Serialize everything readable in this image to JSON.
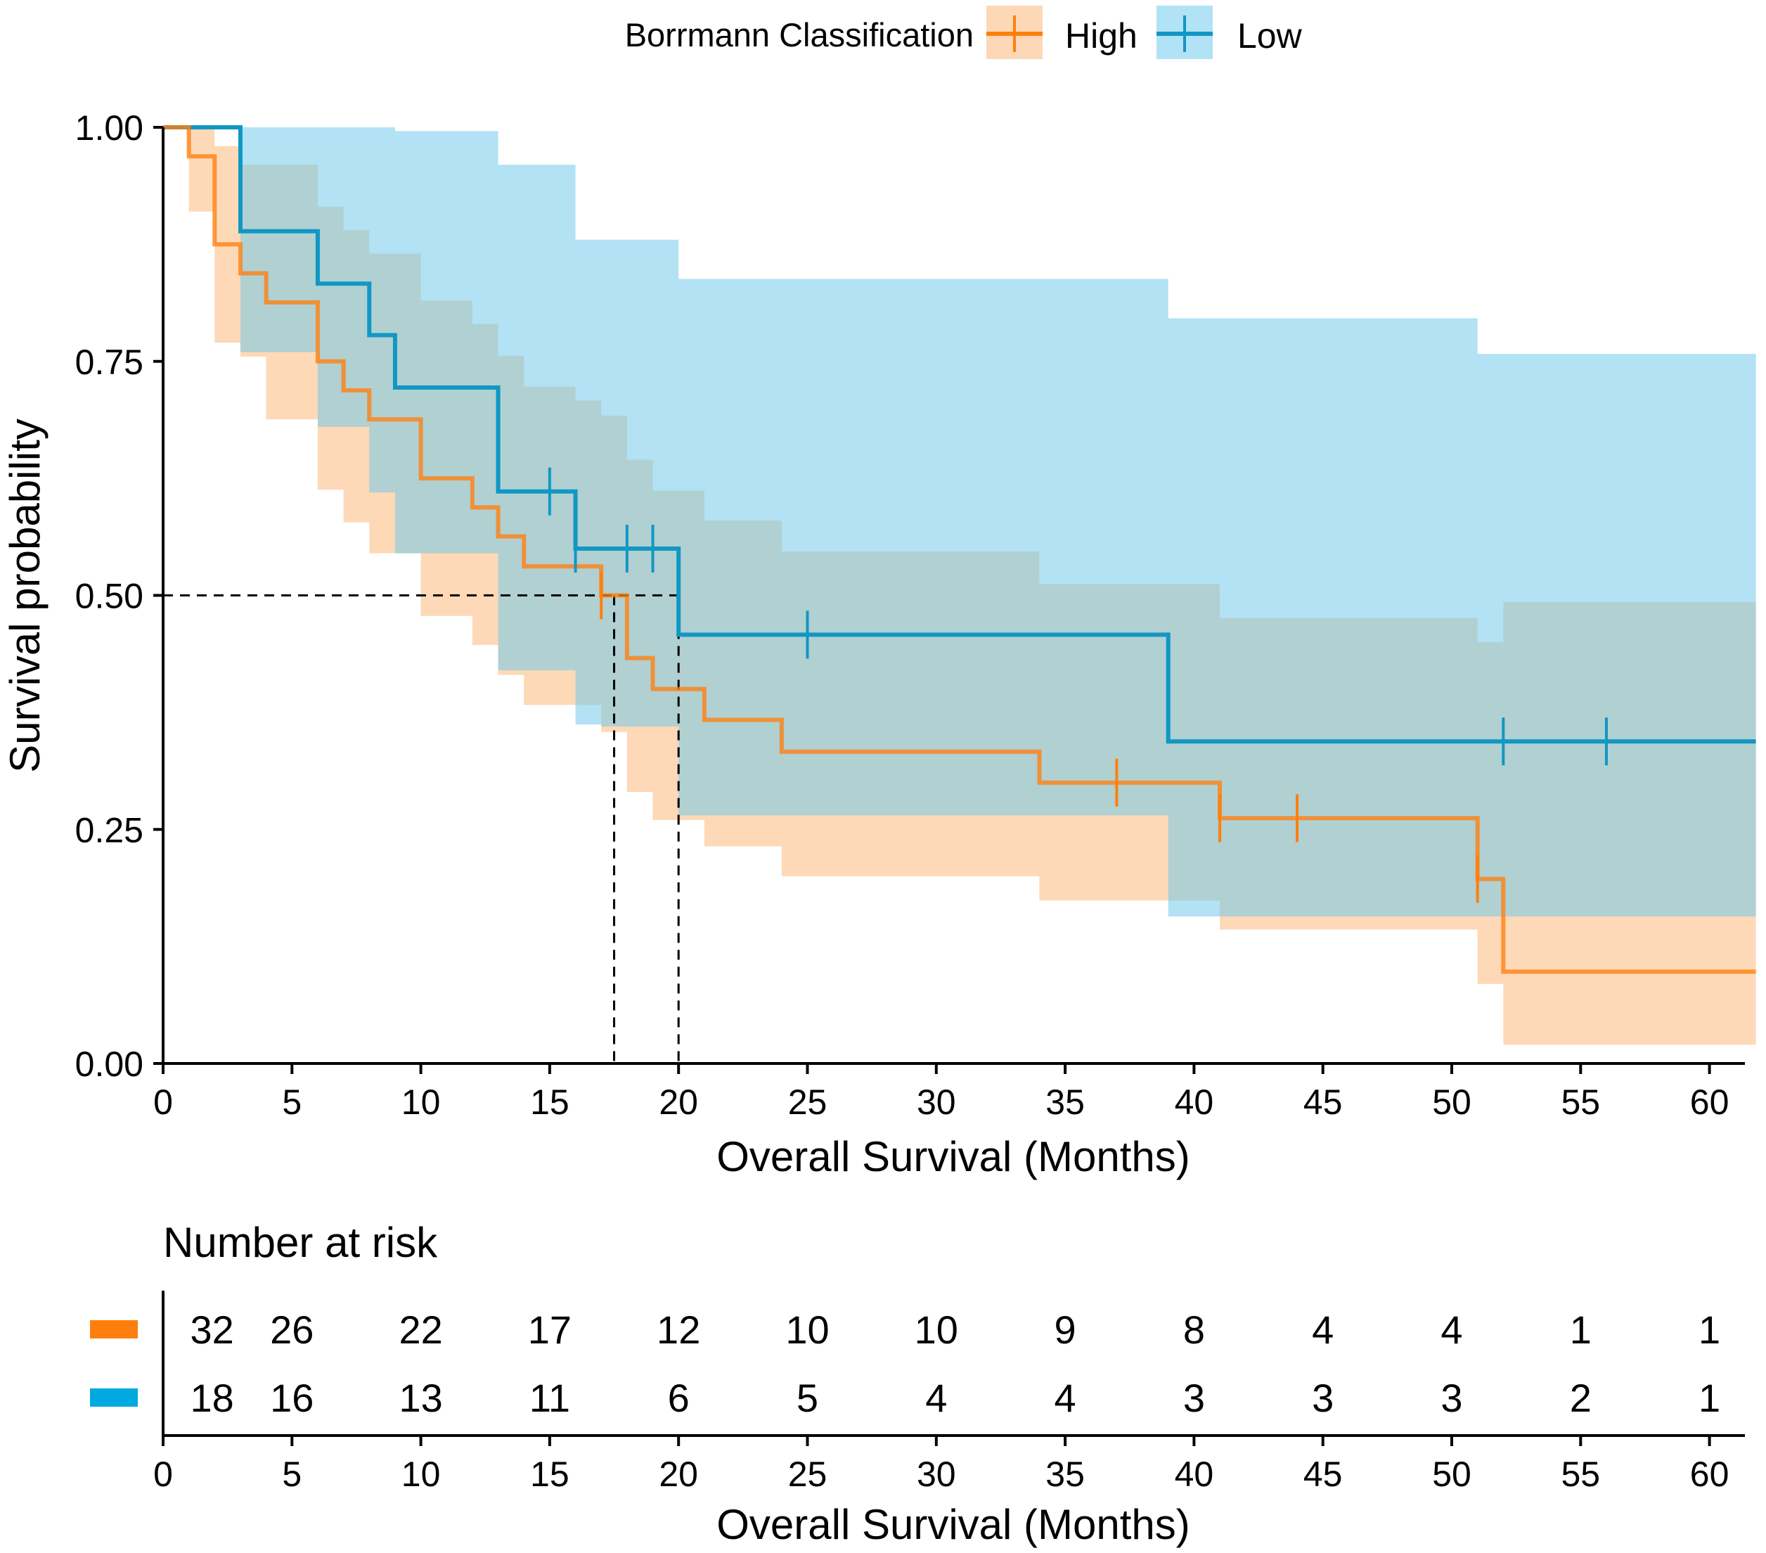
{
  "chart_data": {
    "type": "line",
    "subtype": "kaplan-meier",
    "legend": {
      "title": "Borrmann Classification",
      "position": "top",
      "entries": [
        {
          "name": "High",
          "color": "#ff7f0e"
        },
        {
          "name": "Low",
          "color": "#1197c4"
        }
      ]
    },
    "xlabel": "Overall Survival (Months)",
    "ylabel": "Survival probability",
    "xlim": [
      0,
      61.8
    ],
    "ylim": [
      0,
      1
    ],
    "x_ticks": [
      "0",
      "5",
      "10",
      "15",
      "20",
      "25",
      "30",
      "35",
      "40",
      "45",
      "50",
      "55",
      "60"
    ],
    "y_ticks": [
      "0.00",
      "0.25",
      "0.50",
      "0.75",
      "1.00"
    ],
    "median_lines": {
      "y": 0.5,
      "x": [
        17.5,
        20
      ]
    },
    "series": [
      {
        "name": "High",
        "line_color": "#ff7f0e",
        "band_color": "#fdd8b6",
        "steps": [
          [
            0,
            1.0
          ],
          [
            1,
            0.969
          ],
          [
            2,
            0.875
          ],
          [
            3,
            0.844
          ],
          [
            4,
            0.813
          ],
          [
            6,
            0.75
          ],
          [
            7,
            0.719
          ],
          [
            8,
            0.688
          ],
          [
            10,
            0.625
          ],
          [
            12,
            0.594
          ],
          [
            13,
            0.563
          ],
          [
            14,
            0.531
          ],
          [
            17,
            0.5
          ],
          [
            18,
            0.433
          ],
          [
            19,
            0.4
          ],
          [
            21,
            0.367
          ],
          [
            24,
            0.333
          ],
          [
            34,
            0.3
          ],
          [
            41,
            0.262
          ],
          [
            51,
            0.197
          ],
          [
            52,
            0.098
          ]
        ],
        "end_x": 61.8,
        "ci_lower": [
          [
            0,
            1.0
          ],
          [
            1,
            0.91
          ],
          [
            2,
            0.77
          ],
          [
            3,
            0.755
          ],
          [
            4,
            0.688
          ],
          [
            6,
            0.613
          ],
          [
            7,
            0.578
          ],
          [
            8,
            0.545
          ],
          [
            10,
            0.478
          ],
          [
            12,
            0.447
          ],
          [
            13,
            0.415
          ],
          [
            14,
            0.383
          ],
          [
            16,
            0.383
          ],
          [
            17,
            0.354
          ],
          [
            18,
            0.29
          ],
          [
            19,
            0.26
          ],
          [
            21,
            0.232
          ],
          [
            24,
            0.2
          ],
          [
            34,
            0.174
          ],
          [
            41,
            0.143
          ],
          [
            51,
            0.085
          ],
          [
            52,
            0.02
          ]
        ],
        "ci_upper": [
          [
            0,
            1.0
          ],
          [
            1,
            1.0
          ],
          [
            2,
            0.98
          ],
          [
            3,
            0.96
          ],
          [
            4,
            0.96
          ],
          [
            6,
            0.915
          ],
          [
            7,
            0.89
          ],
          [
            8,
            0.865
          ],
          [
            10,
            0.815
          ],
          [
            12,
            0.79
          ],
          [
            13,
            0.756
          ],
          [
            14,
            0.723
          ],
          [
            16,
            0.708
          ],
          [
            17,
            0.692
          ],
          [
            18,
            0.645
          ],
          [
            19,
            0.612
          ],
          [
            21,
            0.58
          ],
          [
            24,
            0.547
          ],
          [
            34,
            0.512
          ],
          [
            41,
            0.476
          ],
          [
            51,
            0.45
          ],
          [
            52,
            0.493
          ]
        ],
        "censored": [
          [
            17,
            0.5
          ],
          [
            37,
            0.3
          ],
          [
            41,
            0.262
          ],
          [
            44,
            0.262
          ],
          [
            51,
            0.197
          ]
        ],
        "at_risk": [
          32,
          26,
          22,
          17,
          12,
          10,
          10,
          9,
          8,
          4,
          4,
          1,
          1
        ]
      },
      {
        "name": "Low",
        "line_color": "#1197c4",
        "band_color": "#b2e2f5",
        "steps": [
          [
            0,
            1.0
          ],
          [
            3,
            0.889
          ],
          [
            6,
            0.833
          ],
          [
            8,
            0.778
          ],
          [
            9,
            0.722
          ],
          [
            13,
            0.611
          ],
          [
            16,
            0.55
          ],
          [
            20,
            0.458
          ],
          [
            39,
            0.344
          ]
        ],
        "end_x": 61.8,
        "ci_lower": [
          [
            0,
            1.0
          ],
          [
            3,
            0.76
          ],
          [
            6,
            0.68
          ],
          [
            8,
            0.61
          ],
          [
            9,
            0.545
          ],
          [
            13,
            0.42
          ],
          [
            16,
            0.362
          ],
          [
            17,
            0.36
          ],
          [
            20,
            0.265
          ],
          [
            39,
            0.157
          ],
          [
            41,
            0.157
          ]
        ],
        "ci_upper": [
          [
            0,
            1.0
          ],
          [
            3,
            1.0
          ],
          [
            9,
            0.996
          ],
          [
            13,
            0.96
          ],
          [
            16,
            0.88
          ],
          [
            20,
            0.838
          ],
          [
            39,
            0.796
          ],
          [
            51,
            0.758
          ],
          [
            52,
            0.758
          ]
        ],
        "censored": [
          [
            15,
            0.611
          ],
          [
            16,
            0.55
          ],
          [
            18,
            0.55
          ],
          [
            19,
            0.55
          ],
          [
            25,
            0.458
          ],
          [
            52,
            0.344
          ],
          [
            56,
            0.344
          ]
        ],
        "at_risk": [
          18,
          16,
          13,
          11,
          6,
          5,
          4,
          4,
          3,
          3,
          3,
          2,
          1
        ]
      }
    ],
    "risk_table": {
      "title": "Number at risk",
      "times": [
        0,
        5,
        10,
        15,
        20,
        25,
        30,
        35,
        40,
        45,
        50,
        55,
        60
      ],
      "xlabel": "Overall Survival (Months)"
    }
  }
}
